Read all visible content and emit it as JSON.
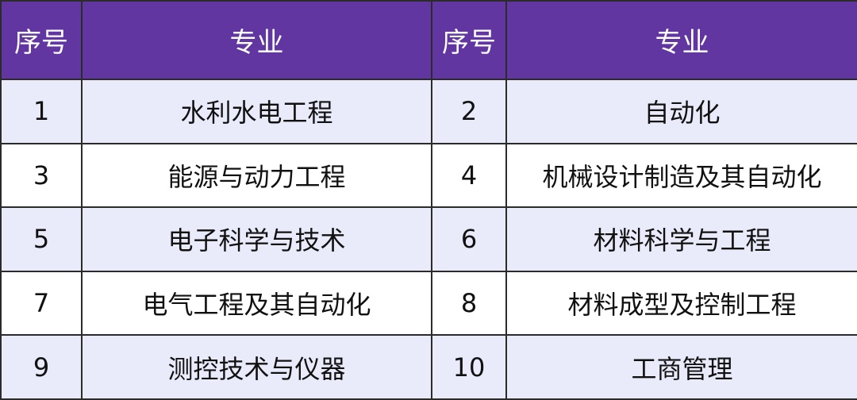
{
  "header": {
    "col_no": "序号",
    "col_major": "专业",
    "col_no2": "序号",
    "col_major2": "专业"
  },
  "colors": {
    "header_bg": "#6236a0",
    "row_alt_bg": "#e9ebfb"
  },
  "rows": [
    {
      "no1": "1",
      "major1": "水利水电工程",
      "no2": "2",
      "major2": "自动化"
    },
    {
      "no1": "3",
      "major1": "能源与动力工程",
      "no2": "4",
      "major2": "机械设计制造及其自动化"
    },
    {
      "no1": "5",
      "major1": "电子科学与技术",
      "no2": "6",
      "major2": "材料科学与工程"
    },
    {
      "no1": "7",
      "major1": "电气工程及其自动化",
      "no2": "8",
      "major2": "材料成型及控制工程"
    },
    {
      "no1": "9",
      "major1": "测控技术与仪器",
      "no2": "10",
      "major2": "工商管理"
    }
  ]
}
